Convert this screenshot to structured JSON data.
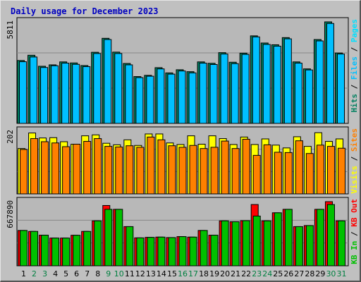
{
  "chart_data": {
    "type": "bar",
    "title": "Daily usage for December 2023",
    "colors": {
      "background": "#c0c0c0",
      "panel": "#b8b8b8",
      "title": "#0000c0",
      "hits": "#008060",
      "files": "#00c0ff",
      "pages": "#00e0ff",
      "visits": "#ffff00",
      "sites": "#ff8000",
      "kb_in": "#00c000",
      "kb_out": "#ff0000",
      "weekday_label": "#000000",
      "weekend_label": "#008040"
    },
    "categories": [
      "1",
      "2",
      "3",
      "4",
      "5",
      "6",
      "7",
      "8",
      "9",
      "10",
      "11",
      "12",
      "13",
      "14",
      "15",
      "16",
      "17",
      "18",
      "19",
      "20",
      "21",
      "22",
      "23",
      "24",
      "25",
      "26",
      "27",
      "28",
      "29",
      "30",
      "31"
    ],
    "weekend_days": [
      "2",
      "3",
      "9",
      "10",
      "16",
      "17",
      "23",
      "24",
      "30",
      "31"
    ],
    "panels": [
      {
        "name": "hits-files-pages",
        "y_max_label": "5811",
        "ylim": [
          0,
          5811
        ],
        "legend": [
          {
            "text": "Hits",
            "color": "#008060"
          },
          {
            "text": "/",
            "color": "#000000"
          },
          {
            "text": "Files",
            "color": "#00c0ff"
          },
          {
            "text": "/",
            "color": "#000000"
          },
          {
            "text": "Pages",
            "color": "#00e0ff"
          }
        ],
        "series": [
          {
            "name": "Hits",
            "color": "#008060",
            "values": [
              3600,
              3900,
              3270,
              3350,
              3520,
              3460,
              3310,
              4070,
              4870,
              4080,
              3430,
              2680,
              2750,
              3190,
              2890,
              3070,
              2960,
              3520,
              3440,
              4050,
              3500,
              4020,
              5010,
              4600,
              4500,
              4910,
              3520,
              3120,
              4800,
              5811,
              4030
            ]
          },
          {
            "name": "Files",
            "color": "#00c0ff",
            "values": [
              3530,
              3800,
              3200,
              3300,
              3450,
              3380,
              3250,
              4000,
              4800,
              4000,
              3350,
              2620,
              2700,
              3120,
              2820,
              3000,
              2890,
              3450,
              3370,
              3970,
              3420,
              3950,
              4950,
              4520,
              4420,
              4840,
              3450,
              3060,
              4720,
              5720,
              3970
            ]
          },
          {
            "name": "Pages",
            "color": "#00e0ff",
            "values": [
              0,
              0,
              0,
              0,
              0,
              0,
              0,
              0,
              0,
              0,
              0,
              0,
              0,
              0,
              0,
              0,
              0,
              0,
              0,
              0,
              0,
              0,
              0,
              0,
              0,
              0,
              0,
              0,
              0,
              0,
              0
            ]
          }
        ]
      },
      {
        "name": "visits-sites",
        "y_max_label": "202",
        "ylim": [
          0,
          202
        ],
        "legend": [
          {
            "text": "Visits",
            "color": "#ffff00"
          },
          {
            "text": "/",
            "color": "#000000"
          },
          {
            "text": "Sites",
            "color": "#ff8000"
          }
        ],
        "series": [
          {
            "name": "Visits",
            "color": "#ffff00",
            "values": [
              146,
              196,
              180,
              181,
              168,
              160,
              187,
              190,
              163,
              158,
              174,
              156,
              193,
              193,
              164,
              159,
              187,
              160,
              187,
              178,
              159,
              183,
              159,
              177,
              157,
              148,
              184,
              153,
              197,
              169,
              177
            ]
          },
          {
            "name": "Sites",
            "color": "#ff8000",
            "values": [
              143,
              178,
              168,
              164,
              152,
              160,
              169,
              178,
              153,
              151,
              155,
              150,
              183,
              174,
              155,
              150,
              156,
              146,
              150,
              170,
              146,
              176,
              124,
              158,
              134,
              133,
              171,
              130,
              157,
              153,
              147
            ]
          }
        ]
      },
      {
        "name": "kb-in-out",
        "y_max_label": "667890",
        "ylim": [
          0,
          667890
        ],
        "legend": [
          {
            "text": "KB In",
            "color": "#00c000"
          },
          {
            "text": "/",
            "color": "#000000"
          },
          {
            "text": "KB Out",
            "color": "#ff0000"
          }
        ],
        "series": [
          {
            "name": "KB Out",
            "color": "#ff0000",
            "values": [
              367890,
              357890,
              318890,
              288890,
              288890,
              317890,
              357890,
              467890,
              627890,
              587890,
              407890,
              290890,
              295890,
              298890,
              293890,
              303890,
              298890,
              367890,
              318890,
              467890,
              458890,
              469890,
              637890,
              467890,
              551890,
              587890,
              407890,
              418890,
              587890,
              667890,
              467890
            ]
          },
          {
            "name": "KB In",
            "color": "#00c000",
            "values": [
              367890,
              357890,
              318890,
              288890,
              288890,
              317890,
              357890,
              467890,
              587890,
              587890,
              407890,
              290890,
              295890,
              298890,
              293890,
              303890,
              298890,
              367890,
              318890,
              467890,
              458890,
              469890,
              517890,
              467890,
              551890,
              587890,
              407890,
              418890,
              587890,
              637890,
              467890
            ]
          }
        ]
      }
    ],
    "xlabel": "",
    "grid": true,
    "legend_position": "right-vertical"
  }
}
